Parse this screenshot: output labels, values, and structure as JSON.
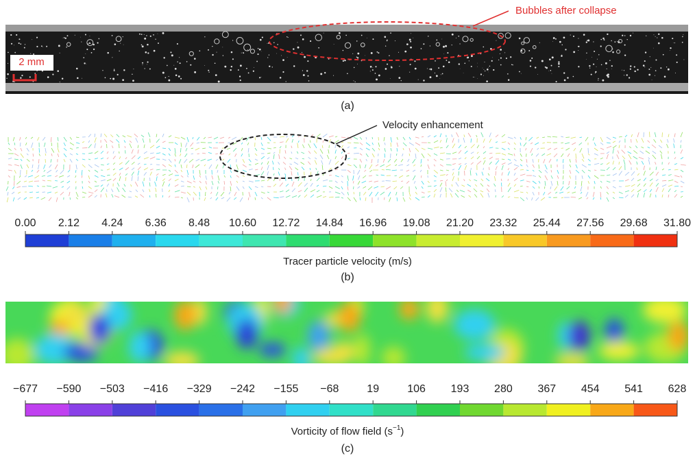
{
  "panel_a": {
    "annotation": "Bubbles after collapse",
    "scale_bar": "2 mm",
    "label": "(a)"
  },
  "panel_b": {
    "annotation": "Velocity enhancement",
    "label": "(b)",
    "colorbar": {
      "title": "Tracer particle velocity (m/s)",
      "range": [
        0,
        31.8
      ],
      "ticks": [
        {
          "value": 0,
          "label": "0.00"
        },
        2.12,
        4.24,
        6.36,
        8.48,
        {
          "value": 10.6,
          "label": "10.60"
        },
        12.72,
        14.84,
        16.96,
        19.08,
        {
          "value": 21.2,
          "label": "21.20"
        },
        23.32,
        25.44,
        27.56,
        29.68,
        {
          "value": 31.8,
          "label": "31.80"
        }
      ],
      "colors": [
        "#1f3fd6",
        "#1a7fe8",
        "#1fb0ee",
        "#2ad8ee",
        "#3ee8d8",
        "#3fe6b0",
        "#2edc70",
        "#38d838",
        "#8ee22a",
        "#c8ec30",
        "#f0f030",
        "#f8c828",
        "#f89a20",
        "#f86a18",
        "#f03010"
      ]
    }
  },
  "panel_c": {
    "label": "(c)",
    "colorbar": {
      "title": "Vorticity of flow field (s",
      "title_superscript": "−1",
      "title_suffix": ")",
      "range": [
        -677,
        628
      ],
      "ticks": [
        {
          "value": -677,
          "label": "−677"
        },
        {
          "value": -590,
          "label": "−590"
        },
        {
          "value": -503,
          "label": "−503"
        },
        {
          "value": -416,
          "label": "−416"
        },
        {
          "value": -329,
          "label": "−329"
        },
        {
          "value": -242,
          "label": "−242"
        },
        {
          "value": -155,
          "label": "−155"
        },
        {
          "value": -68,
          "label": "−68"
        },
        19,
        106,
        193,
        280,
        367,
        454,
        541,
        628
      ],
      "colors": [
        "#c040f0",
        "#8a40e8",
        "#5040d8",
        "#2a50e0",
        "#2a70e8",
        "#40a0f0",
        "#30d0f0",
        "#30e0c8",
        "#30d890",
        "#30d050",
        "#70d830",
        "#b8e830",
        "#f0f020",
        "#f8a818",
        "#f85818"
      ]
    }
  }
}
